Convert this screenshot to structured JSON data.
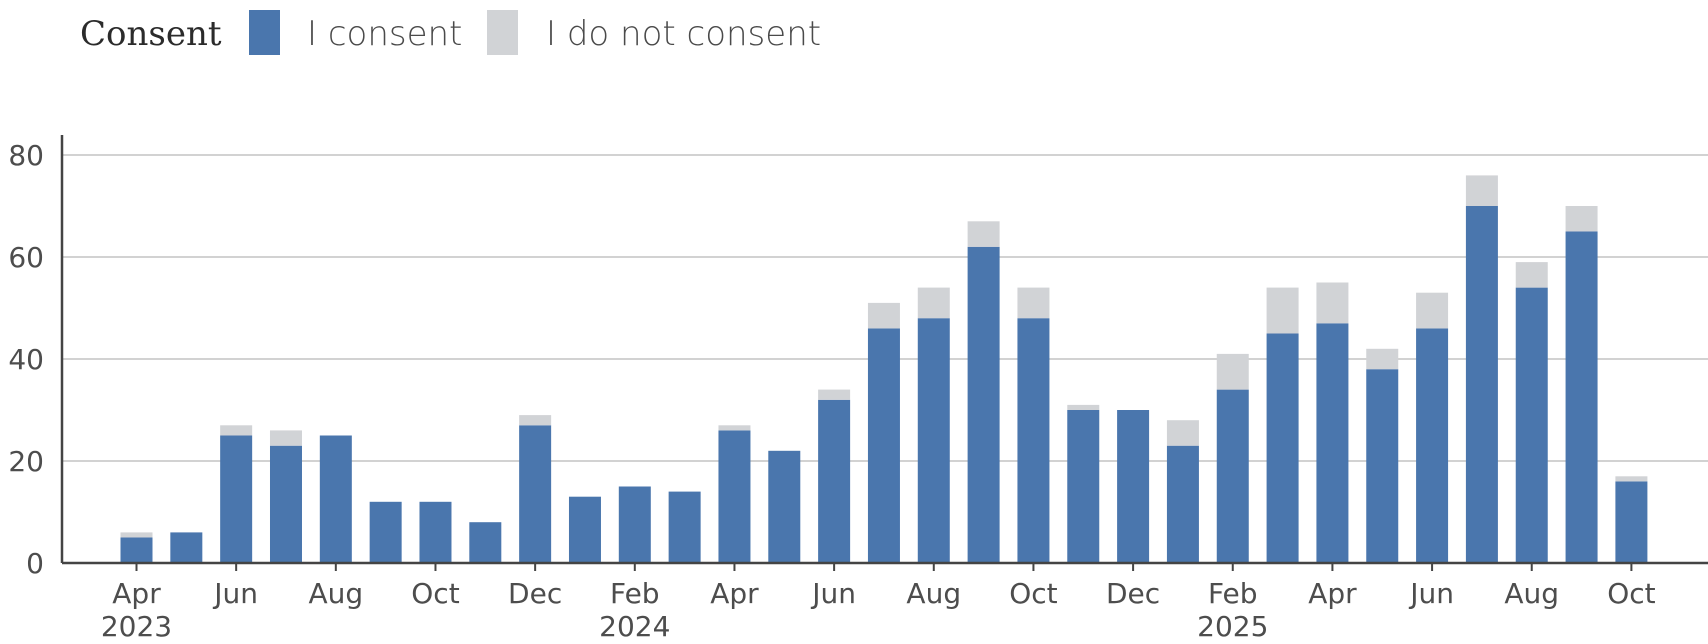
{
  "chart_data": {
    "type": "bar",
    "stacked": true,
    "legend": {
      "title": "Consent",
      "position": "top-left",
      "entries": [
        {
          "label": "I consent",
          "color": "#4a76ad"
        },
        {
          "label": "I do not consent",
          "color": "#d1d3d6"
        }
      ]
    },
    "categories": [
      "2023-04",
      "2023-05",
      "2023-06",
      "2023-07",
      "2023-08",
      "2023-09",
      "2023-10",
      "2023-11",
      "2023-12",
      "2024-01",
      "2024-02",
      "2024-03",
      "2024-04",
      "2024-05",
      "2024-06",
      "2024-07",
      "2024-08",
      "2024-09",
      "2024-10",
      "2024-11",
      "2024-12",
      "2025-01",
      "2025-02",
      "2025-03",
      "2025-04",
      "2025-05",
      "2025-06",
      "2025-07",
      "2025-08",
      "2025-09",
      "2025-10"
    ],
    "series": [
      {
        "name": "I consent",
        "color": "#4a76ad",
        "values": [
          5,
          6,
          25,
          23,
          25,
          12,
          12,
          8,
          27,
          13,
          15,
          14,
          26,
          22,
          32,
          46,
          48,
          62,
          48,
          30,
          30,
          23,
          34,
          45,
          47,
          38,
          46,
          70,
          54,
          65,
          16
        ]
      },
      {
        "name": "I do not consent",
        "color": "#d1d3d6",
        "values": [
          1,
          0,
          2,
          3,
          0,
          0,
          0,
          0,
          2,
          0,
          0,
          0,
          1,
          0,
          2,
          5,
          6,
          5,
          6,
          1,
          0,
          5,
          7,
          9,
          8,
          4,
          7,
          6,
          5,
          5,
          1
        ]
      }
    ],
    "x_tick_labels": [
      {
        "category": "2023-04",
        "month": "Apr",
        "year": "2023"
      },
      {
        "category": "2023-06",
        "month": "Jun",
        "year": ""
      },
      {
        "category": "2023-08",
        "month": "Aug",
        "year": ""
      },
      {
        "category": "2023-10",
        "month": "Oct",
        "year": ""
      },
      {
        "category": "2023-12",
        "month": "Dec",
        "year": ""
      },
      {
        "category": "2024-02",
        "month": "Feb",
        "year": "2024"
      },
      {
        "category": "2024-04",
        "month": "Apr",
        "year": ""
      },
      {
        "category": "2024-06",
        "month": "Jun",
        "year": ""
      },
      {
        "category": "2024-08",
        "month": "Aug",
        "year": ""
      },
      {
        "category": "2024-10",
        "month": "Oct",
        "year": ""
      },
      {
        "category": "2024-12",
        "month": "Dec",
        "year": ""
      },
      {
        "category": "2025-02",
        "month": "Feb",
        "year": "2025"
      },
      {
        "category": "2025-04",
        "month": "Apr",
        "year": ""
      },
      {
        "category": "2025-06",
        "month": "Jun",
        "year": ""
      },
      {
        "category": "2025-08",
        "month": "Aug",
        "year": ""
      },
      {
        "category": "2025-10",
        "month": "Oct",
        "year": ""
      }
    ],
    "y_ticks": [
      0,
      20,
      40,
      60,
      80
    ],
    "ylim": [
      0,
      80
    ],
    "grid": "horizontal",
    "xlabel": "",
    "ylabel": "",
    "title": ""
  }
}
